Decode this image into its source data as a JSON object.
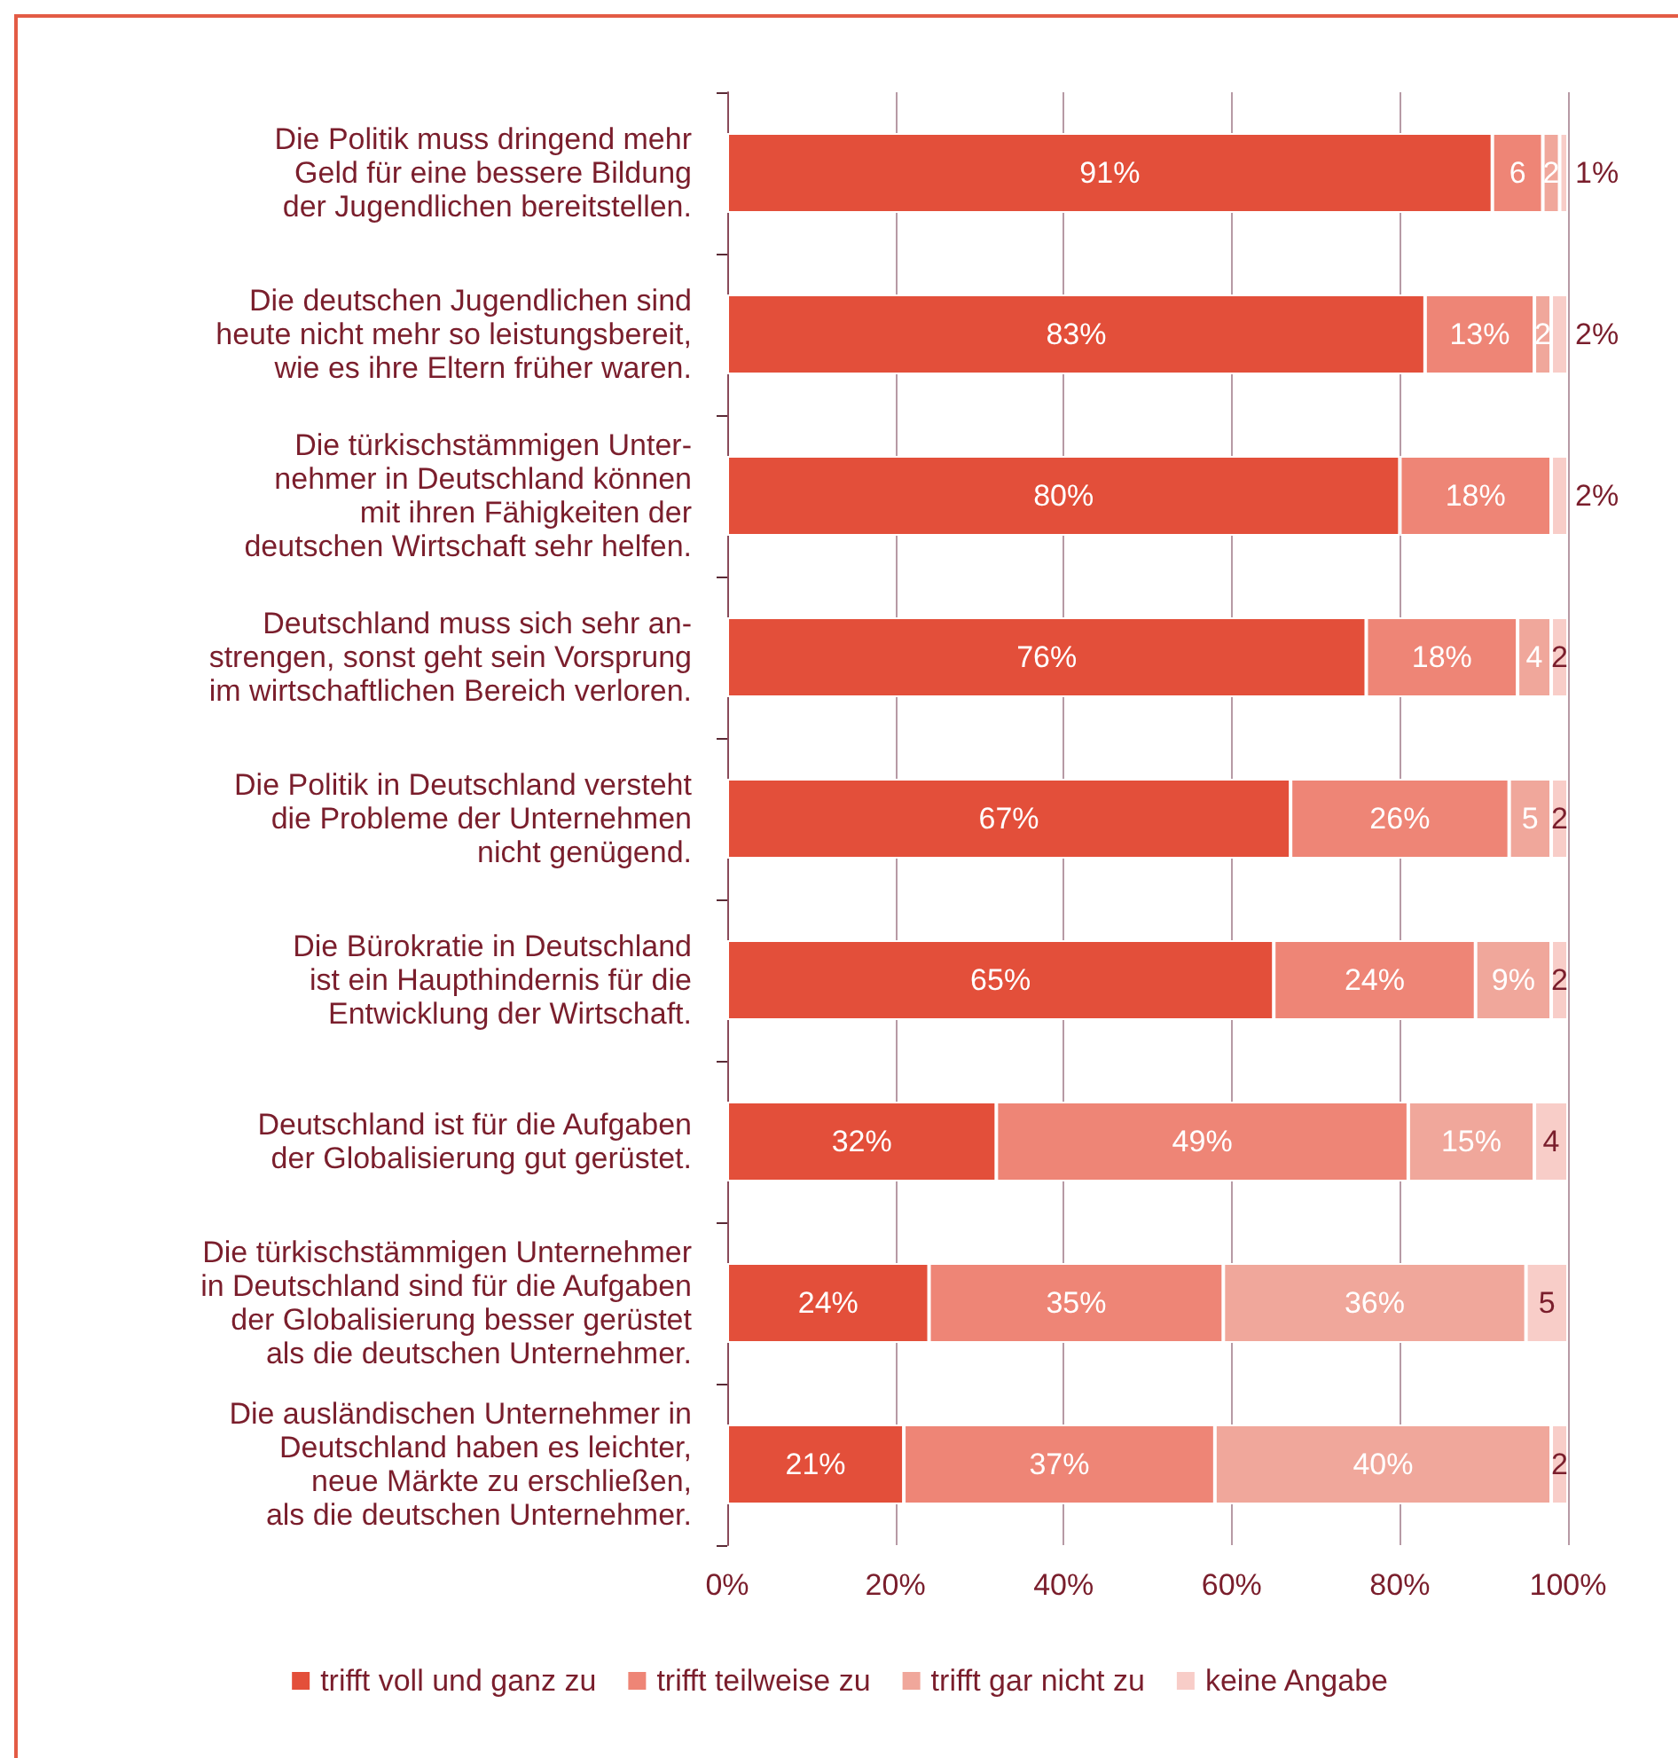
{
  "chart_data": {
    "type": "bar",
    "orientation": "horizontal",
    "stacked": true,
    "categories": [
      "Die Politik muss dringend mehr\nGeld für eine bessere Bildung\nder Jugendlichen bereitstellen.",
      "Die deutschen Jugendlichen sind\nheute nicht mehr so leistungsbereit,\nwie es ihre Eltern früher waren.",
      "Die türkischstämmigen Unter-\nnehmer in Deutschland können\nmit ihren Fähigkeiten der\ndeutschen Wirtschaft sehr helfen.",
      "Deutschland muss sich sehr an-\nstrengen, sonst geht sein Vorsprung\nim wirtschaftlichen Bereich verloren.",
      "Die Politik in Deutschland versteht\ndie Probleme der Unternehmen\nnicht genügend.",
      "Die Bürokratie in Deutschland\nist ein Haupthindernis für die\nEntwicklung der Wirtschaft.",
      "Deutschland ist für die Aufgaben\nder Globalisierung gut gerüstet.",
      "Die türkischstämmigen Unternehmer\nin Deutschland sind für die Aufgaben\nder Globalisierung besser gerüstet\nals die deutschen Unternehmer.",
      "Die ausländischen Unternehmer in\nDeutschland haben es leichter,\nneue Märkte zu erschließen,\nals die deutschen Unternehmer."
    ],
    "series": [
      {
        "name": "trifft voll und ganz zu",
        "color": "#e34f3a",
        "values": [
          91,
          83,
          80,
          76,
          67,
          65,
          32,
          24,
          21
        ],
        "value_labels": [
          "91%",
          "83%",
          "80%",
          "76%",
          "67%",
          "65%",
          "32%",
          "24%",
          "21%"
        ]
      },
      {
        "name": "trifft teilweise zu",
        "color": "#ee8576",
        "values": [
          6,
          13,
          18,
          18,
          26,
          24,
          49,
          35,
          37
        ],
        "value_labels": [
          "6",
          "13%",
          "18%",
          "18%",
          "26%",
          "24%",
          "49%",
          "35%",
          "37%"
        ]
      },
      {
        "name": "trifft gar nicht zu",
        "color": "#f0a79b",
        "values": [
          2,
          2,
          null,
          4,
          5,
          9,
          15,
          36,
          40
        ],
        "value_labels": [
          "2",
          "2",
          null,
          "4",
          "5",
          "9%",
          "15%",
          "36%",
          "40%"
        ]
      },
      {
        "name": "keine Angabe",
        "color": "#f8cdc8",
        "values": [
          1,
          2,
          2,
          2,
          2,
          2,
          4,
          5,
          2
        ],
        "value_labels": [
          "1%",
          "2%",
          "2%",
          "2",
          "2",
          "2",
          "4",
          "5",
          "2"
        ]
      }
    ],
    "xlim": [
      0,
      100
    ],
    "xticks": [
      {
        "value": 0,
        "label": "0%"
      },
      {
        "value": 20,
        "label": "20%"
      },
      {
        "value": 40,
        "label": "40%"
      },
      {
        "value": 60,
        "label": "60%"
      },
      {
        "value": 80,
        "label": "80%"
      },
      {
        "value": 100,
        "label": "100%"
      }
    ],
    "grid": "x",
    "legend": "bottom"
  }
}
